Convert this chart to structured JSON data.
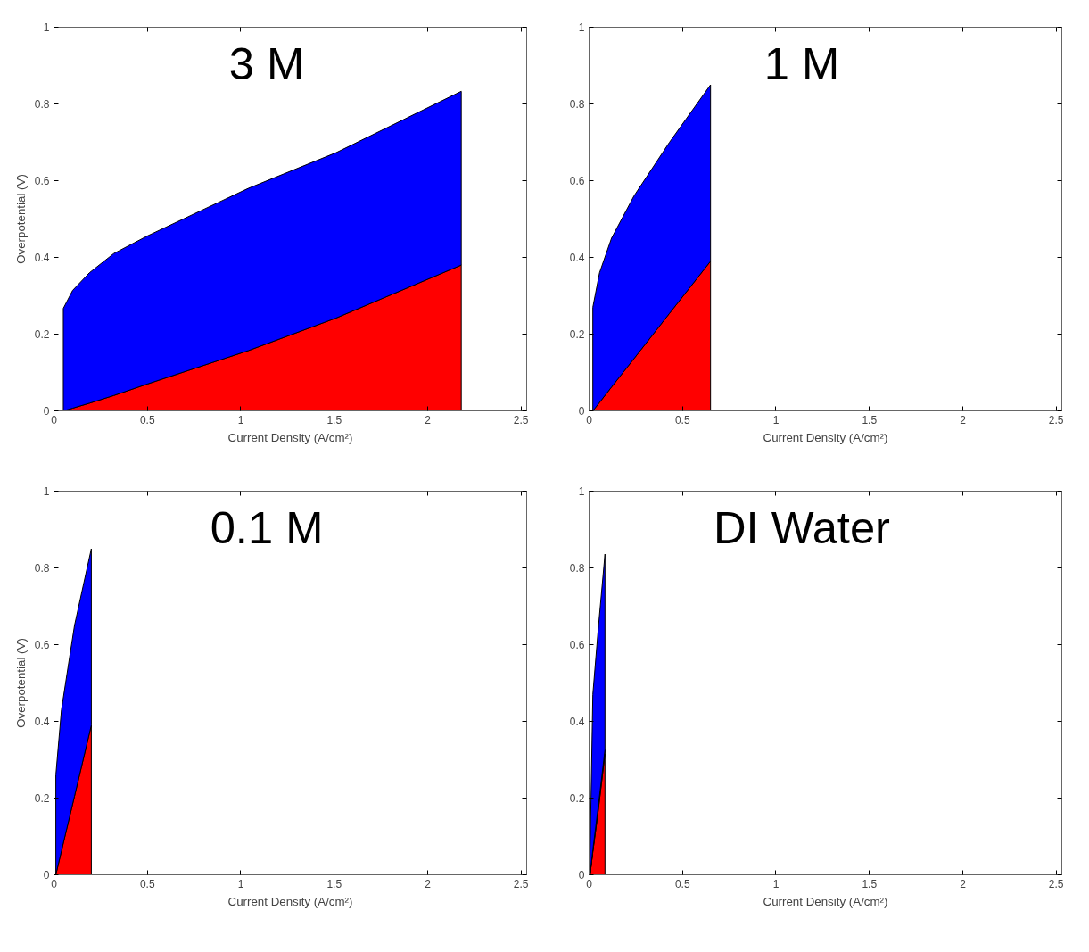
{
  "chart_data": [
    {
      "type": "area",
      "title": "3 M",
      "xlabel": "Current Density (A/cm²)",
      "ylabel": "Overpotential (V)",
      "stacked": true,
      "x": [
        0.05,
        0.1,
        0.19,
        0.32,
        0.5,
        1.04,
        1.51,
        2.18
      ],
      "xlim": [
        0,
        2.53
      ],
      "ylim": [
        0,
        1
      ],
      "xticks": [
        0,
        0.5,
        1,
        1.5,
        2,
        2.5
      ],
      "yticks": [
        0,
        0.2,
        0.4,
        0.6,
        0.8,
        1
      ],
      "grid": false,
      "series": [
        {
          "color": "#ff0000",
          "values": [
            0,
            0.007,
            0.02,
            0.04,
            0.07,
            0.157,
            0.242,
            0.38
          ]
        },
        {
          "color": "#0000ff",
          "values": [
            0.267,
            0.307,
            0.34,
            0.37,
            0.386,
            0.423,
            0.431,
            0.453
          ]
        }
      ]
    },
    {
      "type": "area",
      "title": "1 M",
      "xlabel": "Current Density (A/cm²)",
      "stacked": true,
      "x": [
        0.02,
        0.056,
        0.12,
        0.24,
        0.43,
        0.65
      ],
      "xlim": [
        0,
        2.53
      ],
      "ylim": [
        0,
        1
      ],
      "xticks": [
        0,
        0.5,
        1,
        1.5,
        2,
        2.5
      ],
      "yticks": [
        0,
        0.2,
        0.4,
        0.6,
        0.8,
        1
      ],
      "grid": false,
      "series": [
        {
          "color": "#ff0000",
          "values": [
            0,
            0.022,
            0.062,
            0.136,
            0.254,
            0.39
          ]
        },
        {
          "color": "#0000ff",
          "values": [
            0.27,
            0.338,
            0.388,
            0.424,
            0.446,
            0.46
          ]
        }
      ]
    },
    {
      "type": "area",
      "title": "0.1 M",
      "xlabel": "Current Density (A/cm²)",
      "ylabel": "Overpotential (V)",
      "stacked": true,
      "x": [
        0.01,
        0.04,
        0.11,
        0.2
      ],
      "xlim": [
        0,
        2.53
      ],
      "ylim": [
        0,
        1
      ],
      "xticks": [
        0,
        0.5,
        1,
        1.5,
        2,
        2.5
      ],
      "yticks": [
        0,
        0.2,
        0.4,
        0.6,
        0.8,
        1
      ],
      "grid": false,
      "series": [
        {
          "color": "#ff0000",
          "values": [
            0,
            0.062,
            0.205,
            0.39
          ]
        },
        {
          "color": "#0000ff",
          "values": [
            0.26,
            0.368,
            0.445,
            0.46
          ]
        }
      ]
    },
    {
      "type": "area",
      "title": "DI Water",
      "xlabel": "Current Density (A/cm²)",
      "stacked": true,
      "x": [
        0.005,
        0.02,
        0.047,
        0.085
      ],
      "xlim": [
        0,
        2.53
      ],
      "ylim": [
        0,
        1
      ],
      "xticks": [
        0,
        0.5,
        1,
        1.5,
        2,
        2.5
      ],
      "yticks": [
        0,
        0.2,
        0.4,
        0.6,
        0.8,
        1
      ],
      "grid": false,
      "series": [
        {
          "color": "#ff0000",
          "values": [
            0,
            0.06,
            0.16,
            0.316
          ]
        },
        {
          "color": "#00ff00",
          "values": [
            0,
            0.005,
            0.01,
            0.01
          ]
        },
        {
          "color": "#0000ff",
          "values": [
            0.05,
            0.405,
            0.46,
            0.51
          ]
        }
      ]
    }
  ]
}
